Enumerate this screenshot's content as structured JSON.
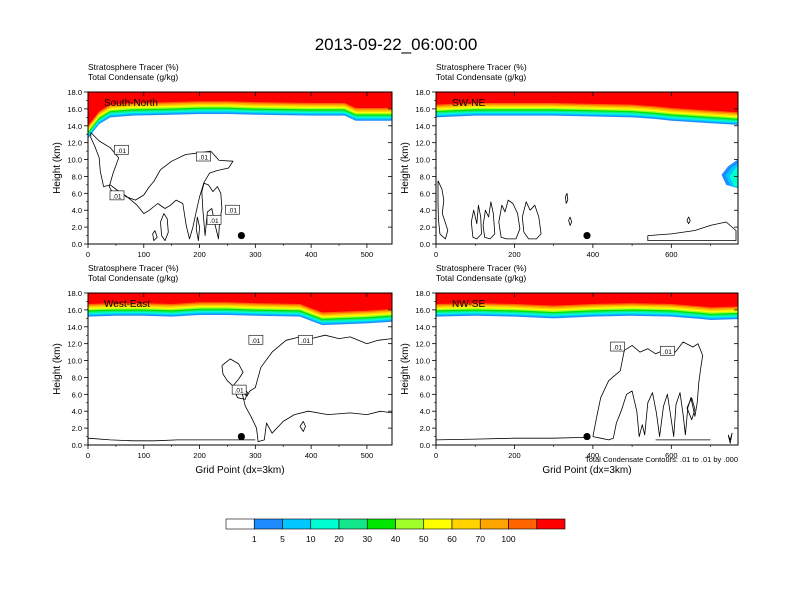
{
  "title": "2013-09-22_06:00:00",
  "panels": [
    {
      "id": "sn",
      "label": "South-North",
      "subtitle_lines": [
        "Stratosphere Tracer   (%)",
        "Total Condensate   (g/kg)"
      ],
      "ylabel": "Height (km)",
      "xlabel": "",
      "xlim": [
        0,
        545
      ],
      "xticks": [
        "0",
        "100",
        "200",
        "300",
        "400",
        "500"
      ],
      "yticks": [
        "0.0",
        "2.0",
        "4.0",
        "6.0",
        "8.0",
        "10.0",
        "12.0",
        "14.0",
        "16.0",
        "18.0"
      ],
      "contour_labels": [
        ".01",
        ".01",
        ".01",
        ".01",
        ".01"
      ],
      "marker_x": 275,
      "marker_height_km": 1.0
    },
    {
      "id": "swne",
      "label": "SW-NE",
      "subtitle_lines": [
        "Stratosphere Tracer   (%)",
        "Total Condensate   (g/kg)"
      ],
      "ylabel": "Height (km)",
      "xlabel": "",
      "xlim": [
        0,
        770
      ],
      "xticks": [
        "0",
        "200",
        "400",
        "600"
      ],
      "yticks": [
        "0.0",
        "2.0",
        "4.0",
        "6.0",
        "8.0",
        "10.0",
        "12.0",
        "14.0",
        "16.0",
        "18.0"
      ],
      "contour_labels": [],
      "marker_x": 385,
      "marker_height_km": 1.0
    },
    {
      "id": "we",
      "label": "West-East",
      "subtitle_lines": [
        "Stratosphere Tracer   (%)",
        "Total Condensate   (g/kg)"
      ],
      "ylabel": "Height (km)",
      "xlabel": "Grid Point (dx=3km)",
      "xlim": [
        0,
        545
      ],
      "xticks": [
        "0",
        "100",
        "200",
        "300",
        "400",
        "500"
      ],
      "yticks": [
        "0.0",
        "2.0",
        "4.0",
        "6.0",
        "8.0",
        "10.0",
        "12.0",
        "14.0",
        "16.0",
        "18.0"
      ],
      "contour_labels": [
        ".01",
        ".01",
        ".01"
      ],
      "marker_x": 275,
      "marker_height_km": 1.0
    },
    {
      "id": "nwse",
      "label": "NW-SE",
      "subtitle_lines": [
        "Stratosphere Tracer   (%)",
        "Total Condensate   (g/kg)"
      ],
      "ylabel": "Height (km)",
      "xlabel": "Grid Point (dx=3km)",
      "xlim": [
        0,
        770
      ],
      "xticks": [
        "0",
        "200",
        "400",
        "600"
      ],
      "yticks": [
        "0.0",
        "2.0",
        "4.0",
        "6.0",
        "8.0",
        "10.0",
        "12.0",
        "14.0",
        "16.0",
        "18.0"
      ],
      "contour_labels": [
        ".01",
        ".01"
      ],
      "marker_x": 385,
      "marker_height_km": 1.0
    }
  ],
  "contour_note": "Total Condensate Contours: .01 to .01 by .000",
  "colorbar": {
    "labels": [
      "1",
      "5",
      "10",
      "20",
      "30",
      "40",
      "50",
      "60",
      "70",
      "100"
    ],
    "colors": [
      "#ffffff",
      "#1e8cff",
      "#00c8ff",
      "#00ffd2",
      "#14e68c",
      "#00e600",
      "#a0ff28",
      "#ffff00",
      "#ffd200",
      "#ffa500",
      "#ff6400",
      "#ff0000"
    ]
  },
  "chart_data": [
    {
      "type": "heatmap",
      "title": "South-North",
      "xlabel": "",
      "ylabel": "Height (km)",
      "xlim": [
        0,
        545
      ],
      "ylim": [
        0,
        18
      ],
      "x": [
        0,
        20,
        40,
        80,
        150,
        200,
        250,
        300,
        400,
        460,
        480,
        545
      ],
      "stratosphere_tracer_base_km": [
        12.5,
        14.2,
        15.0,
        15.2,
        15.3,
        15.4,
        15.4,
        15.3,
        15.2,
        15.2,
        14.6,
        14.6
      ],
      "levels_percent": [
        1,
        5,
        10,
        20,
        30,
        40,
        50,
        60,
        70,
        100
      ],
      "contour": {
        "field": "Total Condensate (g/kg)",
        "level": 0.01
      }
    },
    {
      "type": "heatmap",
      "title": "SW-NE",
      "xlabel": "",
      "ylabel": "Height (km)",
      "xlim": [
        0,
        770
      ],
      "ylim": [
        0,
        18
      ],
      "x": [
        0,
        100,
        200,
        300,
        400,
        500,
        560,
        600,
        700,
        770
      ],
      "stratosphere_tracer_base_km": [
        15.0,
        15.2,
        15.2,
        15.2,
        15.1,
        15.0,
        14.8,
        14.6,
        14.3,
        14.1
      ],
      "levels_percent": [
        1,
        5,
        10,
        20,
        30,
        40,
        50,
        60,
        70,
        100
      ],
      "contour": {
        "field": "Total Condensate (g/kg)",
        "level": 0.01
      }
    },
    {
      "type": "heatmap",
      "title": "West-East",
      "xlabel": "Grid Point (dx=3km)",
      "ylabel": "Height (km)",
      "xlim": [
        0,
        545
      ],
      "ylim": [
        0,
        18
      ],
      "x": [
        0,
        50,
        100,
        150,
        200,
        250,
        300,
        380,
        420,
        500,
        545
      ],
      "stratosphere_tracer_base_km": [
        15.2,
        15.3,
        15.3,
        15.2,
        15.4,
        15.4,
        15.3,
        15.2,
        14.2,
        14.4,
        14.6
      ],
      "levels_percent": [
        1,
        5,
        10,
        20,
        30,
        40,
        50,
        60,
        70,
        100
      ],
      "contour": {
        "field": "Total Condensate (g/kg)",
        "level": 0.01
      }
    },
    {
      "type": "heatmap",
      "title": "NW-SE",
      "xlabel": "Grid Point (dx=3km)",
      "ylabel": "Height (km)",
      "xlim": [
        0,
        770
      ],
      "ylim": [
        0,
        18
      ],
      "x": [
        0,
        100,
        200,
        300,
        400,
        500,
        600,
        680,
        700,
        770
      ],
      "stratosphere_tracer_base_km": [
        15.2,
        15.3,
        15.2,
        15.0,
        15.2,
        15.3,
        15.2,
        14.9,
        14.8,
        14.9
      ],
      "levels_percent": [
        1,
        5,
        10,
        20,
        30,
        40,
        50,
        60,
        70,
        100
      ],
      "contour": {
        "field": "Total Condensate (g/kg)",
        "level": 0.01
      }
    }
  ]
}
